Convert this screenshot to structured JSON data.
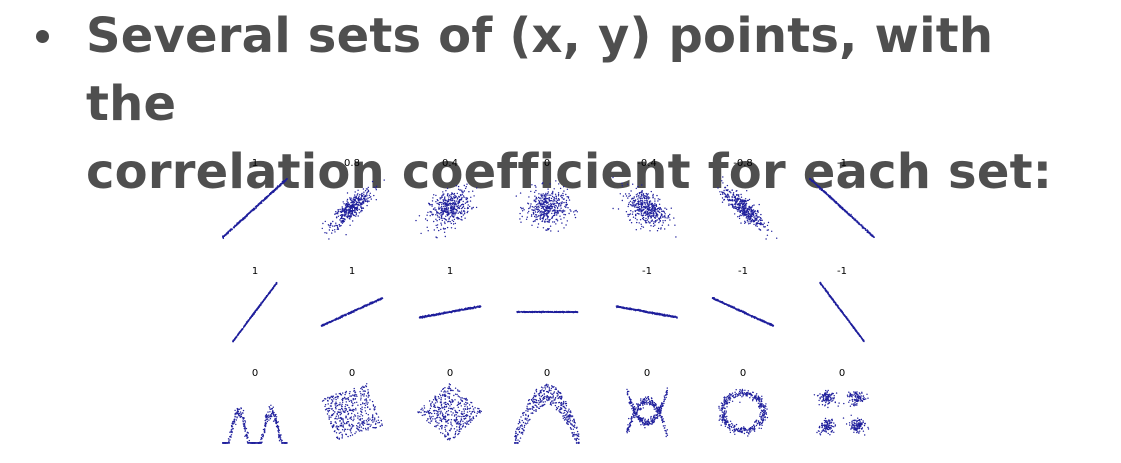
{
  "bullet": {
    "line1": "Several sets of (x, y) points, with the",
    "line2": "correlation coefficient for each set:"
  },
  "colors": {
    "text": "#4f4f4f",
    "points": "#1f1f9c"
  },
  "figure": {
    "rows": [
      {
        "labels": [
          "1",
          "0.8",
          "0.4",
          "0",
          "-0.4",
          "-0.8",
          "-1"
        ],
        "patterns": [
          "line-pos",
          "ellipse-pos-strong",
          "ellipse-pos-weak",
          "blob",
          "ellipse-neg-weak",
          "ellipse-neg-strong",
          "line-neg"
        ]
      },
      {
        "labels": [
          "1",
          "1",
          "1",
          "",
          "-1",
          "-1",
          "-1"
        ],
        "patterns": [
          "line-steep-pos",
          "line-mid-pos",
          "line-flat-pos",
          "line-horizontal",
          "line-flat-neg",
          "line-mid-neg",
          "line-steep-neg"
        ]
      },
      {
        "labels": [
          "0",
          "0",
          "0",
          "0",
          "0",
          "0",
          "0"
        ],
        "patterns": [
          "w-shape",
          "rotated-square",
          "diamond",
          "parabola",
          "x-shape",
          "ring",
          "four-clusters"
        ]
      }
    ]
  }
}
